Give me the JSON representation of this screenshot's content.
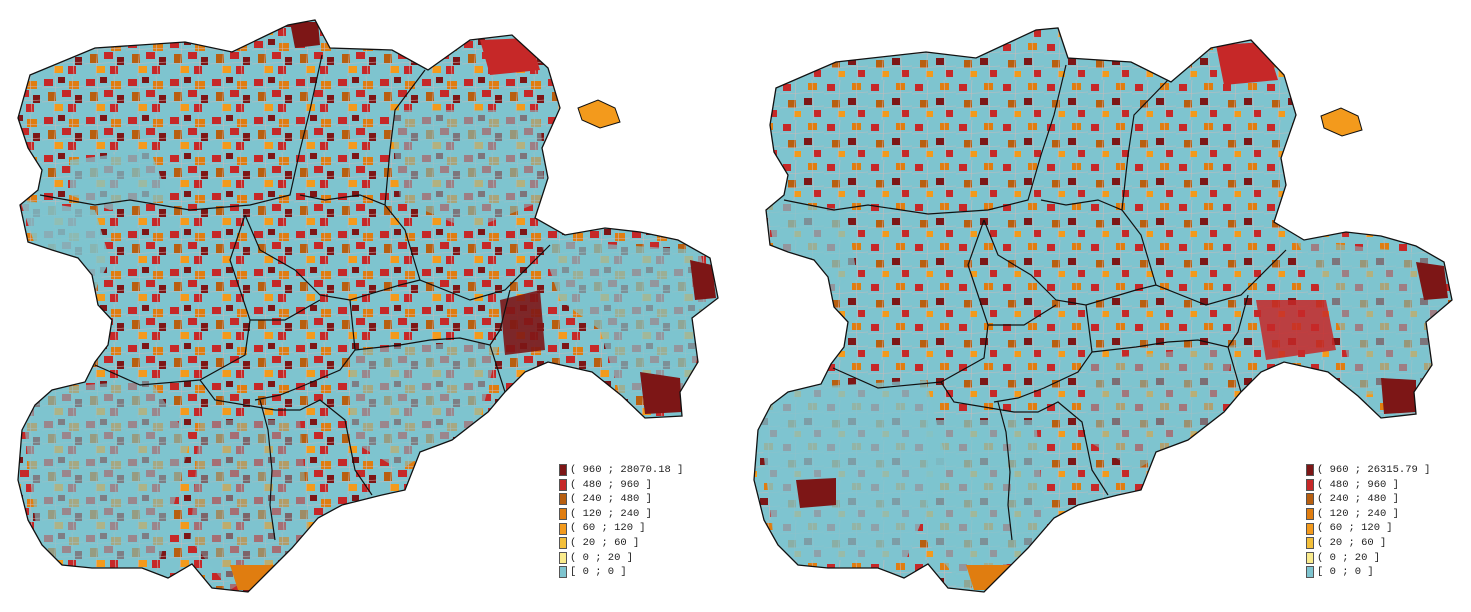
{
  "maps": [
    {
      "id": "left",
      "legend": [
        {
          "label": "( 960 ; 28070.18 ]",
          "color": "#7d1616"
        },
        {
          "label": "( 480 ; 960 ]",
          "color": "#c62828"
        },
        {
          "label": "( 240 ; 480 ]",
          "color": "#b85f10"
        },
        {
          "label": "( 120 ; 240 ]",
          "color": "#e07d10"
        },
        {
          "label": "( 60 ; 120 ]",
          "color": "#f39a1c"
        },
        {
          "label": "( 20 ; 60 ]",
          "color": "#f3bf3a"
        },
        {
          "label": "( 0 ; 20 ]",
          "color": "#faeb8c"
        },
        {
          "label": "[ 0 ; 0 ]",
          "color": "#7ec4cf"
        }
      ]
    },
    {
      "id": "right",
      "legend": [
        {
          "label": "( 960 ; 26315.79 ]",
          "color": "#7d1616"
        },
        {
          "label": "( 480 ; 960 ]",
          "color": "#c62828"
        },
        {
          "label": "( 240 ; 480 ]",
          "color": "#b85f10"
        },
        {
          "label": "( 120 ; 240 ]",
          "color": "#e07d10"
        },
        {
          "label": "( 60 ; 120 ]",
          "color": "#f39a1c"
        },
        {
          "label": "( 20 ; 60 ]",
          "color": "#f3bf3a"
        },
        {
          "label": "( 0 ; 20 ]",
          "color": "#faeb8c"
        },
        {
          "label": "[ 0 ; 0 ]",
          "color": "#7ec4cf"
        }
      ]
    }
  ]
}
